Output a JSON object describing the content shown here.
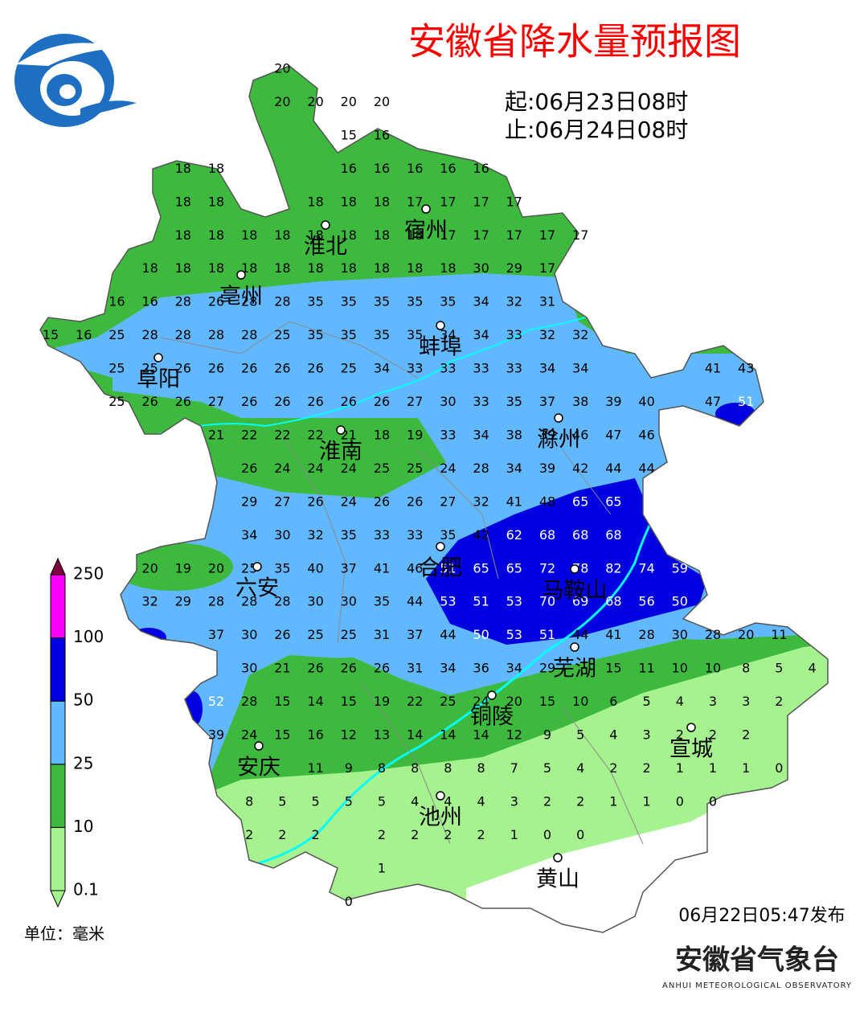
{
  "title": "安徽省降水量预报图",
  "start": "起:06月23日08时",
  "end": "止:06月24日08时",
  "issued": "06月22日05:47发布",
  "agency": "安徽省气象台",
  "agency_en": "ANHUI METEOROLOGICAL OBSERVATORY",
  "legend": {
    "levels": [
      0.1,
      10,
      25,
      50,
      100,
      250
    ],
    "colors": [
      "#a6f28f",
      "#3dba3d",
      "#61b8ff",
      "#0000e1",
      "#fa00fa",
      "#800040"
    ],
    "unit": "单位：毫米"
  },
  "cities": [
    "淮北",
    "宿州",
    "亳州",
    "蚌埠",
    "阜阳",
    "滁州",
    "淮南",
    "合肥",
    "六安",
    "马鞍山",
    "芜湖",
    "铜陵",
    "宣城",
    "安庆",
    "池州",
    "黄山"
  ],
  "grid": [
    [
      null,
      null,
      null,
      null,
      null,
      null,
      null,
      20
    ],
    [
      null,
      null,
      null,
      null,
      null,
      null,
      null,
      20,
      20,
      20,
      20
    ],
    [
      null,
      null,
      null,
      null,
      null,
      null,
      null,
      null,
      null,
      15,
      16
    ],
    [
      null,
      null,
      null,
      null,
      18,
      18,
      null,
      null,
      null,
      16,
      16,
      16,
      16,
      16
    ],
    [
      null,
      null,
      null,
      null,
      18,
      18,
      null,
      null,
      18,
      18,
      18,
      17,
      17,
      17,
      17
    ],
    [
      null,
      null,
      null,
      null,
      18,
      18,
      18,
      18,
      18,
      18,
      18,
      18,
      17,
      17,
      17,
      17,
      17
    ],
    [
      null,
      null,
      null,
      18,
      18,
      18,
      18,
      18,
      18,
      18,
      18,
      18,
      18,
      30,
      29,
      17
    ],
    [
      null,
      null,
      16,
      16,
      28,
      26,
      28,
      28,
      35,
      35,
      35,
      35,
      35,
      34,
      32,
      31
    ],
    [
      15,
      16,
      25,
      28,
      28,
      28,
      28,
      25,
      35,
      35,
      35,
      35,
      34,
      34,
      33,
      32,
      32
    ],
    [
      null,
      null,
      25,
      25,
      26,
      26,
      26,
      26,
      26,
      25,
      34,
      33,
      33,
      33,
      33,
      34,
      34,
      null,
      null,
      null,
      41,
      43
    ],
    [
      null,
      null,
      25,
      26,
      26,
      27,
      26,
      26,
      26,
      26,
      26,
      27,
      30,
      33,
      35,
      37,
      38,
      39,
      40,
      null,
      47,
      51
    ],
    [
      null,
      null,
      null,
      null,
      null,
      21,
      22,
      22,
      22,
      21,
      18,
      19,
      33,
      34,
      38,
      39,
      46,
      47,
      46
    ],
    [
      null,
      null,
      null,
      null,
      null,
      null,
      26,
      24,
      24,
      24,
      25,
      25,
      24,
      28,
      34,
      39,
      42,
      44,
      44
    ],
    [
      null,
      null,
      null,
      null,
      null,
      null,
      29,
      27,
      26,
      24,
      26,
      26,
      27,
      32,
      41,
      48,
      65,
      65
    ],
    [
      null,
      null,
      null,
      null,
      null,
      null,
      34,
      30,
      32,
      35,
      33,
      33,
      35,
      42,
      62,
      68,
      68,
      68
    ],
    [
      null,
      null,
      null,
      20,
      19,
      20,
      25,
      35,
      40,
      37,
      41,
      46,
      51,
      65,
      65,
      72,
      78,
      82,
      74,
      59
    ],
    [
      null,
      null,
      null,
      32,
      29,
      28,
      28,
      28,
      30,
      30,
      35,
      44,
      53,
      51,
      53,
      70,
      69,
      68,
      56,
      50
    ],
    [
      null,
      null,
      null,
      null,
      null,
      37,
      30,
      26,
      25,
      25,
      31,
      37,
      44,
      50,
      53,
      51,
      44,
      41,
      28,
      30,
      28,
      20,
      11
    ],
    [
      null,
      null,
      null,
      null,
      null,
      null,
      30,
      21,
      26,
      26,
      26,
      31,
      34,
      36,
      34,
      29,
      null,
      15,
      11,
      10,
      10,
      8,
      5,
      4
    ],
    [
      null,
      null,
      null,
      null,
      null,
      52,
      28,
      15,
      14,
      15,
      19,
      22,
      25,
      24,
      20,
      15,
      10,
      6,
      5,
      4,
      3,
      3,
      2
    ],
    [
      null,
      null,
      null,
      null,
      null,
      39,
      24,
      15,
      16,
      12,
      13,
      14,
      14,
      14,
      12,
      9,
      5,
      4,
      3,
      2,
      2,
      2
    ],
    [
      null,
      null,
      null,
      null,
      null,
      null,
      null,
      null,
      11,
      9,
      8,
      8,
      8,
      8,
      7,
      5,
      4,
      2,
      2,
      1,
      1,
      1,
      0
    ],
    [
      null,
      null,
      null,
      null,
      null,
      null,
      8,
      5,
      5,
      5,
      5,
      4,
      4,
      4,
      3,
      2,
      2,
      1,
      1,
      0,
      0
    ],
    [
      null,
      null,
      null,
      null,
      null,
      null,
      2,
      2,
      2,
      null,
      2,
      2,
      2,
      2,
      1,
      0,
      0
    ],
    [
      null,
      null,
      null,
      null,
      null,
      null,
      null,
      null,
      null,
      null,
      1
    ],
    [
      null,
      null,
      null,
      null,
      null,
      null,
      null,
      null,
      null,
      0
    ]
  ]
}
